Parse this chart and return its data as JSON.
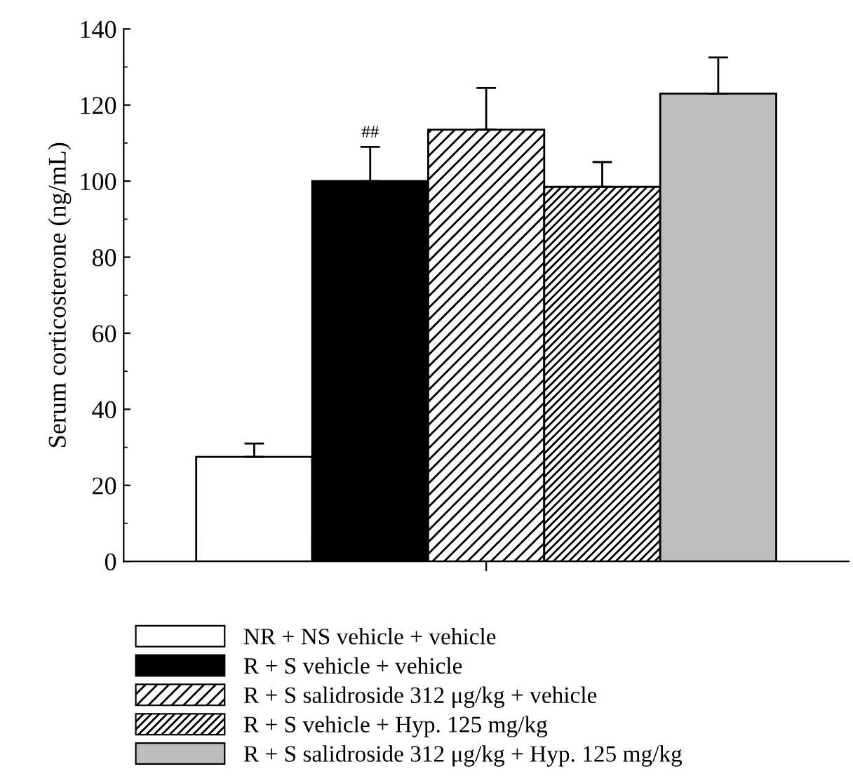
{
  "chart_data": {
    "type": "bar",
    "ylabel": "Serum corticosterone (ng/mL)",
    "categories": [
      null
    ],
    "series": [
      {
        "name": "NR + NS vehicle + vehicle",
        "color": "#ffffff",
        "values": [
          27.5
        ],
        "errors": [
          3.5
        ]
      },
      {
        "name": "R + S vehicle + vehicle",
        "color": "#000000",
        "values": [
          100
        ],
        "errors": [
          9
        ]
      },
      {
        "name": "R + S salidroside 312 μg/kg + vehicle",
        "color": "#000000",
        "values": [
          113.5
        ],
        "errors": [
          11
        ]
      },
      {
        "name": "R + S vehicle + Hyp. 125 mg/kg",
        "color": "#000000",
        "values": [
          98.5
        ],
        "errors": [
          6.5
        ]
      },
      {
        "name": "R + S salidroside 312 μg/kg + Hyp. 125 mg/kg",
        "color": "#bdbdbd",
        "values": [
          123
        ],
        "errors": [
          9.5
        ]
      }
    ],
    "annotations": [
      "##"
    ],
    "ylim": [
      0,
      140
    ],
    "yticks": [
      0,
      20,
      40,
      60,
      80,
      100,
      120,
      140
    ],
    "grid": false,
    "legend": "bottom"
  }
}
